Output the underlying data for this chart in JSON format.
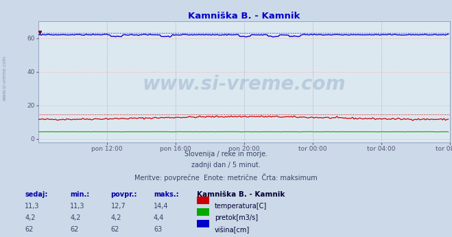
{
  "title": "Kamniška B. - Kamnik",
  "bg_color": "#ccd9e8",
  "plot_bg_color": "#dce8f0",
  "grid_color_h": "#ff9999",
  "grid_color_v": "#9999bb",
  "title_color": "#0000cc",
  "axis_label_color": "#555577",
  "watermark_text": "www.si-vreme.com",
  "watermark_color": "#7799bb",
  "watermark_alpha": 0.35,
  "subtitle_line1": "Slovenija / reke in morje.",
  "subtitle_line2": "zadnji dan / 5 minut.",
  "subtitle_line3": "Meritve: povprečne  Enote: metrične  Črta: maksimum",
  "ylim": [
    -2,
    70
  ],
  "yticks": [
    0,
    20,
    40,
    60
  ],
  "n_points": 288,
  "temp_base": 11.5,
  "flow_base": 4.2,
  "height_base": 62.0,
  "dashed_red_y": 14.4,
  "dashed_blue_y": 63.0,
  "xtick_labels": [
    "pon 12:00",
    "pon 16:00",
    "pon 20:00",
    "tor 00:00",
    "tor 04:00",
    "tor 08:00"
  ],
  "xtick_positions": [
    48,
    96,
    144,
    192,
    240,
    288
  ],
  "temp_color": "#cc0000",
  "flow_color": "#00aa00",
  "height_color": "#0000cc",
  "legend_title": "Kamniška B. - Kamnik",
  "legend_labels": [
    "temperatura[C]",
    "pretok[m3/s]",
    "višina[cm]"
  ],
  "legend_colors": [
    "#cc0000",
    "#00aa00",
    "#0000cc"
  ],
  "table_headers": [
    "sedaj:",
    "min.:",
    "povpr.:",
    "maks.:"
  ],
  "table_data": [
    [
      "11,3",
      "11,3",
      "12,7",
      "14,4"
    ],
    [
      "4,2",
      "4,2",
      "4,2",
      "4,4"
    ],
    [
      "62",
      "62",
      "62",
      "63"
    ]
  ],
  "left_margin_color": "#6688aa",
  "subtitle_color": "#334466",
  "header_color": "#0000aa",
  "table_val_color": "#334466",
  "legend_title_color": "#000033",
  "legend_label_color": "#000033"
}
